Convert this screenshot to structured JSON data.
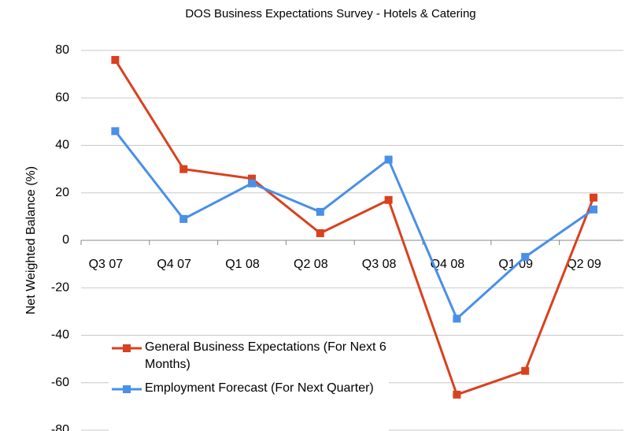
{
  "chart_data": {
    "type": "line",
    "title": "DOS Business Expectations Survey - Hotels & Catering",
    "y_label": "Net Weighted Balance (%)",
    "categories": [
      "Q3 07",
      "Q4 07",
      "Q1 08",
      "Q2 08",
      "Q3 08",
      "Q4 08",
      "Q1 09",
      "Q2 09"
    ],
    "series": [
      {
        "name": "General Business Expectations (For Next 6 Months)",
        "color": "#d9411e",
        "values": [
          76,
          30,
          26,
          3,
          17,
          -65,
          -55,
          18
        ]
      },
      {
        "name": "Employment Forecast (For Next Quarter)",
        "color": "#4a8fe8",
        "values": [
          46,
          9,
          24,
          12,
          34,
          -33,
          -7,
          13
        ]
      }
    ],
    "ylim": [
      -80,
      80
    ],
    "yticks": [
      -80,
      -60,
      -40,
      -20,
      0,
      20,
      40,
      60,
      80
    ],
    "grid": true,
    "legend": "lower left"
  }
}
